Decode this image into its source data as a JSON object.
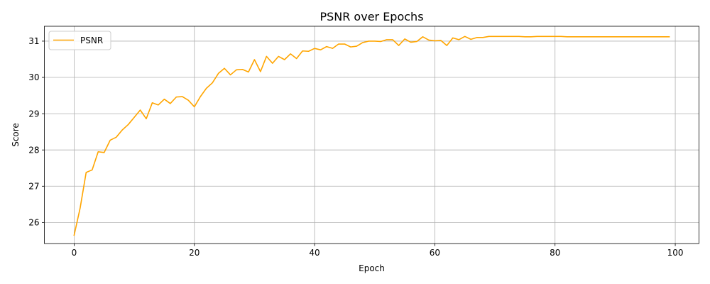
{
  "chart_data": {
    "type": "line",
    "title": "PSNR over Epochs",
    "xlabel": "Epoch",
    "ylabel": "Score",
    "xlim": [
      -4.95,
      103.95
    ],
    "ylim": [
      25.42,
      31.41
    ],
    "xticks": [
      0,
      20,
      40,
      60,
      80,
      100
    ],
    "yticks": [
      26,
      27,
      28,
      29,
      30,
      31
    ],
    "grid": true,
    "legend_position": "upper-left",
    "series": [
      {
        "name": "PSNR",
        "color": "#ffa500",
        "x": [
          0,
          1,
          2,
          3,
          4,
          5,
          6,
          7,
          8,
          9,
          10,
          11,
          12,
          13,
          14,
          15,
          16,
          17,
          18,
          19,
          20,
          21,
          22,
          23,
          24,
          25,
          26,
          27,
          28,
          29,
          30,
          31,
          32,
          33,
          34,
          35,
          36,
          37,
          38,
          39,
          40,
          41,
          42,
          43,
          44,
          45,
          46,
          47,
          48,
          49,
          50,
          51,
          52,
          53,
          54,
          55,
          56,
          57,
          58,
          59,
          60,
          61,
          62,
          63,
          64,
          65,
          66,
          67,
          68,
          69,
          70,
          71,
          72,
          73,
          74,
          75,
          76,
          77,
          78,
          79,
          80,
          81,
          82,
          83,
          84,
          85,
          86,
          87,
          88,
          89,
          90,
          91,
          92,
          93,
          94,
          95,
          96,
          97,
          98,
          99
        ],
        "values": [
          25.65,
          26.4,
          27.38,
          27.45,
          27.95,
          27.93,
          28.27,
          28.35,
          28.55,
          28.7,
          28.9,
          29.1,
          28.86,
          29.3,
          29.24,
          29.4,
          29.28,
          29.46,
          29.47,
          29.37,
          29.19,
          29.47,
          29.7,
          29.85,
          30.11,
          30.25,
          30.07,
          30.21,
          30.22,
          30.15,
          30.49,
          30.16,
          30.58,
          30.39,
          30.58,
          30.49,
          30.65,
          30.52,
          30.73,
          30.72,
          30.8,
          30.76,
          30.85,
          30.8,
          30.92,
          30.92,
          30.84,
          30.86,
          30.96,
          31.0,
          31.0,
          30.99,
          31.04,
          31.04,
          30.88,
          31.06,
          30.97,
          30.99,
          31.12,
          31.03,
          31.01,
          31.02,
          30.88,
          31.09,
          31.04,
          31.13,
          31.05,
          31.1,
          31.1,
          31.13,
          31.13,
          31.13,
          31.13,
          31.13,
          31.13,
          31.12,
          31.12,
          31.13,
          31.13,
          31.13,
          31.13,
          31.13,
          31.12,
          31.12,
          31.12,
          31.12,
          31.12,
          31.12,
          31.12,
          31.12,
          31.12,
          31.12,
          31.12,
          31.12,
          31.12,
          31.12,
          31.12,
          31.12,
          31.12,
          31.12
        ]
      }
    ]
  }
}
